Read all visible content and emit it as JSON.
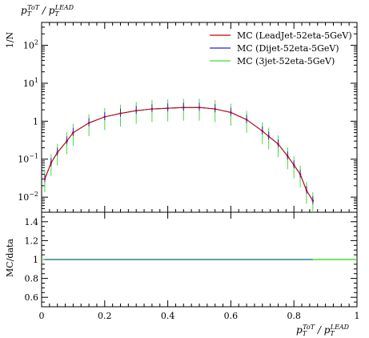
{
  "chart_data": {
    "type": "line",
    "title_main": "p",
    "title_sub_1": "T",
    "title_sup_1": "ToT",
    "title_mid": " / p",
    "title_sub_2": "T",
    "title_sup_2": "LEAD",
    "ylabel_top": "1/N",
    "ylabel_bottom": "MC/data",
    "xlabel_main": "p",
    "xlabel_sub_1": "T",
    "xlabel_sup_1": "ToT",
    "xlabel_mid": " / p",
    "xlabel_sub_2": "T",
    "xlabel_sup_2": "LEAD",
    "xlim": [
      0,
      1
    ],
    "ylim_top_log": [
      0.004,
      400
    ],
    "ylim_bottom": [
      0.5,
      1.5
    ],
    "x_ticks": [
      "0",
      "0.2",
      "0.4",
      "0.6",
      "0.8",
      "1"
    ],
    "x_tick_values": [
      0,
      0.2,
      0.4,
      0.6,
      0.8,
      1.0
    ],
    "y_ticks_top": [
      {
        "value": 0.01,
        "base": "10",
        "exp": "−2"
      },
      {
        "value": 0.1,
        "base": "10",
        "exp": "−1"
      },
      {
        "value": 1,
        "base": "1",
        "exp": ""
      },
      {
        "value": 10,
        "base": "10",
        "exp": "1"
      },
      {
        "value": 100,
        "base": "10",
        "exp": "2"
      }
    ],
    "y_ticks_bottom": [
      "0.6",
      "0.8",
      "1",
      "1.2",
      "1.4"
    ],
    "y_tick_values_bottom": [
      0.6,
      0.8,
      1.0,
      1.2,
      1.4
    ],
    "x": [
      0.01,
      0.03,
      0.05,
      0.08,
      0.1,
      0.15,
      0.2,
      0.25,
      0.3,
      0.35,
      0.4,
      0.45,
      0.5,
      0.55,
      0.6,
      0.65,
      0.7,
      0.72,
      0.75,
      0.78,
      0.8,
      0.82,
      0.84,
      0.86
    ],
    "series": [
      {
        "name": "MC (LeadJet-52eta-5GeV)",
        "color": "#cc0000",
        "values": [
          0.03,
          0.08,
          0.15,
          0.3,
          0.5,
          0.9,
          1.3,
          1.6,
          1.9,
          2.1,
          2.2,
          2.3,
          2.3,
          2.1,
          1.7,
          1.1,
          0.55,
          0.4,
          0.25,
          0.12,
          0.07,
          0.04,
          0.015,
          0.008
        ]
      },
      {
        "name": "MC (Dijet-52eta-5GeV)",
        "color": "#2222dd",
        "values": [
          0.03,
          0.08,
          0.15,
          0.3,
          0.5,
          0.9,
          1.3,
          1.6,
          1.9,
          2.1,
          2.2,
          2.3,
          2.3,
          2.1,
          1.7,
          1.1,
          0.55,
          0.4,
          0.25,
          0.12,
          0.07,
          0.04,
          0.015,
          0.008
        ]
      },
      {
        "name": "MC (3jet-52eta-5GeV)",
        "color": "#44dd33",
        "values": [
          0.03,
          0.08,
          0.15,
          0.3,
          0.5,
          0.9,
          1.3,
          1.6,
          1.9,
          2.1,
          2.2,
          2.3,
          2.3,
          2.1,
          1.7,
          1.1,
          0.55,
          0.4,
          0.25,
          0.12,
          0.07,
          0.04,
          0.015,
          0.008
        ]
      }
    ],
    "ratio": {
      "values": [
        1,
        1,
        1,
        1,
        1,
        1,
        1,
        1,
        1,
        1,
        1,
        1,
        1,
        1,
        1,
        1,
        1,
        1,
        1,
        1,
        1,
        1,
        1,
        1
      ]
    },
    "legend_position": "top-right",
    "grid": false
  }
}
